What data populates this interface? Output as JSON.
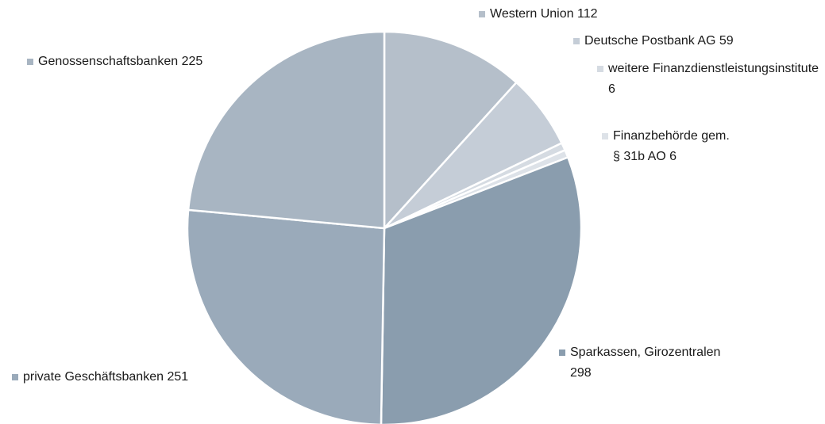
{
  "chart_data": {
    "type": "pie",
    "categories": [
      "Western Union",
      "Deutsche Postbank AG",
      "weitere Finanzdienstleistungsinstitute",
      "Finanzbehörde gem. § 31b AO",
      "Sparkassen, Girozentralen",
      "private Geschäftsbanken",
      "Genossenschaftsbanken"
    ],
    "values": [
      112,
      59,
      6,
      6,
      298,
      251,
      225
    ],
    "colors": [
      "#b5bfca",
      "#c5cdd7",
      "#d5dbe2",
      "#dde2e8",
      "#8a9dae",
      "#9aaaba",
      "#a8b5c2"
    ]
  }
}
